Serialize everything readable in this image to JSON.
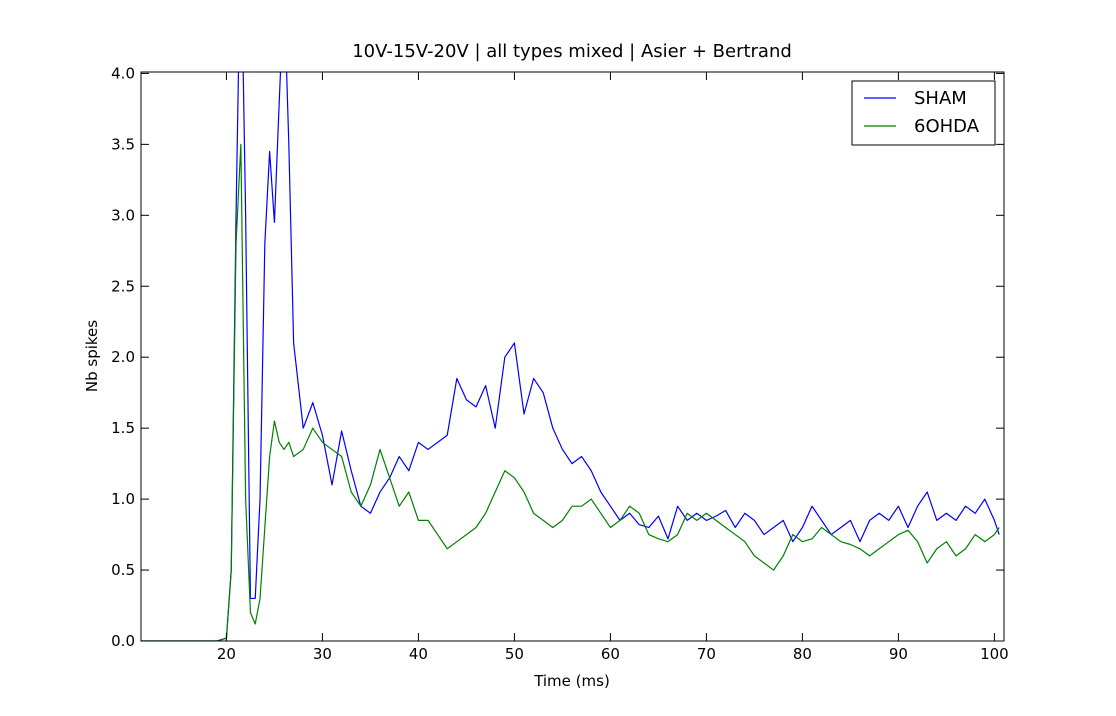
{
  "chart_data": {
    "type": "line",
    "title": "10V-15V-20V | all types mixed | Asier + Bertrand",
    "x_label": "Time (ms)",
    "y_label": "Nb spikes",
    "x": [
      11,
      12,
      13,
      14,
      15,
      16,
      17,
      18,
      19,
      20,
      20.5,
      21,
      21.5,
      22,
      22.5,
      23,
      23.5,
      24,
      24.5,
      25,
      25.5,
      26,
      26.5,
      27,
      28,
      29,
      30,
      31,
      32,
      33,
      34,
      35,
      36,
      37,
      38,
      39,
      40,
      41,
      42,
      43,
      44,
      45,
      46,
      47,
      48,
      49,
      50,
      51,
      52,
      53,
      54,
      55,
      56,
      57,
      58,
      59,
      60,
      61,
      62,
      63,
      64,
      65,
      66,
      67,
      68,
      69,
      70,
      71,
      72,
      73,
      74,
      75,
      76,
      77,
      78,
      79,
      80,
      81,
      82,
      83,
      84,
      85,
      86,
      87,
      88,
      89,
      90,
      91,
      92,
      93,
      94,
      95,
      96,
      97,
      98,
      99,
      100,
      100.5
    ],
    "series": [
      {
        "name": "SHAM",
        "color": "#0000ff",
        "values": [
          0,
          0,
          0,
          0,
          0,
          0,
          0,
          0,
          0,
          0.02,
          0.5,
          3.0,
          5.0,
          3.0,
          0.3,
          0.3,
          1.0,
          2.8,
          3.45,
          2.95,
          3.8,
          4.6,
          3.5,
          2.1,
          1.5,
          1.68,
          1.45,
          1.1,
          1.48,
          1.2,
          0.95,
          0.9,
          1.05,
          1.15,
          1.3,
          1.2,
          1.4,
          1.35,
          1.4,
          1.45,
          1.85,
          1.7,
          1.65,
          1.8,
          1.5,
          2.0,
          2.1,
          1.6,
          1.85,
          1.75,
          1.5,
          1.35,
          1.25,
          1.3,
          1.2,
          1.05,
          0.95,
          0.85,
          0.9,
          0.82,
          0.8,
          0.88,
          0.72,
          0.95,
          0.85,
          0.9,
          0.85,
          0.88,
          0.92,
          0.8,
          0.9,
          0.85,
          0.75,
          0.8,
          0.85,
          0.7,
          0.8,
          0.95,
          0.85,
          0.75,
          0.8,
          0.85,
          0.7,
          0.85,
          0.9,
          0.85,
          0.95,
          0.8,
          0.95,
          1.05,
          0.85,
          0.9,
          0.85,
          0.95,
          0.9,
          1.0,
          0.85,
          0.75
        ]
      },
      {
        "name": "6OHDA",
        "color": "#008000",
        "values": [
          0,
          0,
          0,
          0,
          0,
          0,
          0,
          0,
          0,
          0.02,
          0.5,
          2.8,
          3.5,
          1.0,
          0.2,
          0.12,
          0.3,
          0.8,
          1.3,
          1.55,
          1.4,
          1.35,
          1.4,
          1.3,
          1.35,
          1.5,
          1.4,
          1.35,
          1.3,
          1.05,
          0.95,
          1.1,
          1.35,
          1.15,
          0.95,
          1.05,
          0.85,
          0.85,
          0.75,
          0.65,
          0.7,
          0.75,
          0.8,
          0.9,
          1.05,
          1.2,
          1.15,
          1.05,
          0.9,
          0.85,
          0.8,
          0.85,
          0.95,
          0.95,
          1.0,
          0.9,
          0.8,
          0.85,
          0.95,
          0.9,
          0.75,
          0.72,
          0.7,
          0.75,
          0.9,
          0.85,
          0.9,
          0.85,
          0.8,
          0.75,
          0.7,
          0.6,
          0.55,
          0.5,
          0.6,
          0.75,
          0.7,
          0.72,
          0.8,
          0.75,
          0.7,
          0.68,
          0.65,
          0.6,
          0.65,
          0.7,
          0.75,
          0.78,
          0.7,
          0.55,
          0.65,
          0.7,
          0.6,
          0.65,
          0.75,
          0.7,
          0.75,
          0.8
        ]
      }
    ],
    "xlim": [
      11.1,
      101
    ],
    "ylim": [
      0,
      4.01
    ],
    "xticks": [
      20,
      30,
      40,
      50,
      60,
      70,
      80,
      90,
      100
    ],
    "yticks": [
      {
        "value": 0,
        "label": "0.0"
      },
      0.5,
      {
        "value": 1,
        "label": "1.0"
      },
      1.5,
      {
        "value": 2,
        "label": "2.0"
      },
      2.5,
      {
        "value": 3,
        "label": "3.0"
      },
      3.5,
      {
        "value": 4,
        "label": "4.0"
      }
    ],
    "legend": "upper right"
  }
}
